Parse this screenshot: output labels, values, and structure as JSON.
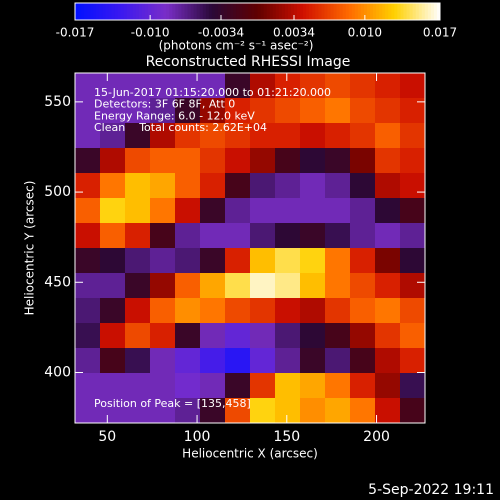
{
  "chart_data": {
    "type": "heatmap",
    "title": "Reconstructed RHESSI Image",
    "xlabel": "Heliocentric X (arcsec)",
    "ylabel": "Heliocentric Y (arcsec)",
    "xlim": [
      32,
      227
    ],
    "ylim": [
      372,
      566
    ],
    "xticks": [
      50,
      100,
      150,
      200
    ],
    "yticks": [
      400,
      450,
      500,
      550
    ],
    "colorbar": {
      "label": "(photons cm⁻² s⁻¹ asec⁻²)",
      "lim": [
        -0.017,
        0.017
      ],
      "ticks": [
        -0.017,
        {
          "value": -0.01,
          "label": "-0.010"
        },
        -0.0034,
        0.0034,
        {
          "value": 0.01,
          "label": "0.010"
        },
        0.017
      ]
    },
    "colormap": [
      "#0010ff",
      "#3a18f0",
      "#7a2ec8",
      "#2a0838",
      "#600000",
      "#d01000",
      "#ff6a00",
      "#ffd000",
      "#ffffff"
    ],
    "annotations": [
      "15-Jun-2017 01:15:20.000 to 01:21:20.000",
      "Detectors: 3F 6F 8F, Att 0",
      "Energy Range: 6.0 - 12.0 keV",
      "Clean    Total counts: 2.62E+04"
    ],
    "peak_label": "Position of Peak = [135,458]",
    "z": [
      [
        -0.008,
        -0.008,
        -0.008,
        -0.008,
        -0.008,
        -0.008,
        -0.003,
        0.003,
        0.005,
        0.006,
        0.007,
        0.006,
        0.005,
        0.004
      ],
      [
        -0.008,
        -0.008,
        -0.008,
        -0.007,
        -0.003,
        0.002,
        0.005,
        0.006,
        0.007,
        0.008,
        0.009,
        0.007,
        0.006,
        0.005
      ],
      [
        -0.008,
        -0.007,
        -0.003,
        0.003,
        0.006,
        0.007,
        0.006,
        0.005,
        0.005,
        0.004,
        0.005,
        0.006,
        0.008,
        0.006
      ],
      [
        -0.003,
        0.003,
        0.007,
        0.008,
        0.008,
        0.006,
        0.004,
        0.002,
        -0.002,
        -0.004,
        -0.003,
        0.001,
        0.006,
        0.005
      ],
      [
        0.005,
        0.009,
        0.012,
        0.011,
        0.008,
        0.005,
        -0.002,
        -0.006,
        -0.007,
        -0.008,
        -0.007,
        -0.004,
        0.003,
        0.004
      ],
      [
        0.008,
        0.013,
        0.012,
        0.009,
        0.004,
        -0.003,
        -0.007,
        -0.008,
        -0.008,
        -0.008,
        -0.008,
        -0.007,
        -0.004,
        -0.002
      ],
      [
        0.004,
        0.008,
        0.005,
        -0.002,
        -0.007,
        -0.008,
        -0.008,
        -0.006,
        -0.004,
        -0.003,
        -0.005,
        -0.007,
        -0.008,
        -0.007
      ],
      [
        -0.003,
        -0.004,
        -0.006,
        -0.007,
        -0.006,
        -0.003,
        0.005,
        0.012,
        0.014,
        0.013,
        0.009,
        0.005,
        0.001,
        -0.004
      ],
      [
        -0.007,
        -0.007,
        -0.003,
        0.002,
        0.008,
        0.011,
        0.014,
        0.016,
        0.015,
        0.012,
        0.009,
        0.007,
        0.005,
        0.003
      ],
      [
        -0.006,
        -0.003,
        0.004,
        0.008,
        0.01,
        0.009,
        0.007,
        0.006,
        0.004,
        0.003,
        0.006,
        0.008,
        0.009,
        0.007
      ],
      [
        -0.005,
        0.004,
        0.007,
        0.005,
        -0.003,
        -0.008,
        -0.01,
        -0.008,
        -0.006,
        -0.004,
        -0.002,
        0.002,
        0.006,
        0.008
      ],
      [
        -0.007,
        -0.002,
        -0.005,
        -0.008,
        -0.01,
        -0.012,
        -0.014,
        -0.01,
        -0.007,
        -0.003,
        -0.006,
        -0.002,
        0.003,
        0.005
      ],
      [
        -0.008,
        -0.008,
        -0.008,
        -0.008,
        -0.009,
        -0.008,
        -0.003,
        0.006,
        0.012,
        0.011,
        0.009,
        0.005,
        0.002,
        -0.005
      ],
      [
        -0.008,
        -0.008,
        -0.008,
        -0.008,
        -0.007,
        -0.003,
        0.007,
        0.013,
        0.012,
        0.01,
        0.011,
        0.009,
        0.004,
        -0.002
      ]
    ]
  },
  "timestamp": "5-Sep-2022 19:11"
}
